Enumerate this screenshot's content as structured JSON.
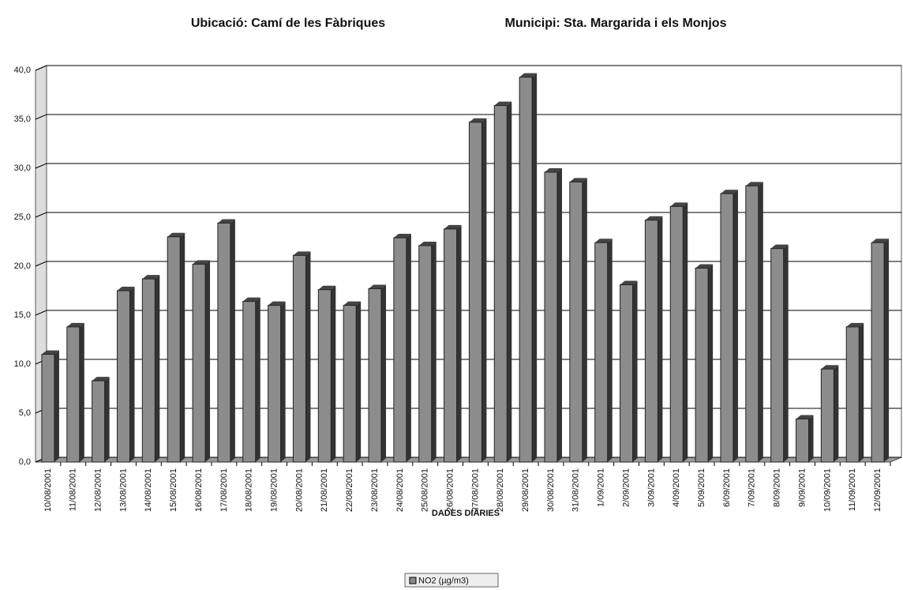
{
  "chart_data": {
    "type": "bar",
    "title": "Ubicació: Camí de les Fàbriques",
    "subtitle": "Municipi: Sta. Margarida i els Monjos",
    "x_label": "DADES DIÀRIES",
    "categories": [
      "10/08/2001",
      "11/08/2001",
      "12/08/2001",
      "13/08/2001",
      "14/08/2001",
      "15/08/2001",
      "16/08/2001",
      "17/08/2001",
      "18/08/2001",
      "19/08/2001",
      "20/08/2001",
      "21/08/2001",
      "22/08/2001",
      "23/08/2001",
      "24/08/2001",
      "25/08/2001",
      "26/08/2001",
      "27/08/2001",
      "28/08/2001",
      "29/08/2001",
      "30/08/2001",
      "31/08/2001",
      "1/09/2001",
      "2/09/2001",
      "3/09/2001",
      "4/09/2001",
      "5/09/2001",
      "6/09/2001",
      "7/09/2001",
      "8/09/2001",
      "9/09/2001",
      "10/09/2001",
      "11/09/2001",
      "12/09/2001"
    ],
    "series": [
      {
        "name": "NO2 (µg/m3)",
        "color": "#8c8c8c",
        "values": [
          11.0,
          13.8,
          8.3,
          17.5,
          18.7,
          23.0,
          20.2,
          24.4,
          16.4,
          16.0,
          21.1,
          17.6,
          16.0,
          17.7,
          22.9,
          22.1,
          23.8,
          34.7,
          36.4,
          39.3,
          29.6,
          28.6,
          22.4,
          18.1,
          24.7,
          26.1,
          19.8,
          27.4,
          28.2,
          21.8,
          4.4,
          9.5,
          13.8,
          22.4
        ]
      }
    ],
    "ylim": [
      0,
      40
    ],
    "yticks": [
      {
        "value": 0,
        "label": "0,0"
      },
      {
        "value": 5,
        "label": "5,0"
      },
      {
        "value": 10,
        "label": "10,0"
      },
      {
        "value": 15,
        "label": "15,0"
      },
      {
        "value": 20,
        "label": "20,0"
      },
      {
        "value": 25,
        "label": "25,0"
      },
      {
        "value": 30,
        "label": "30,0"
      },
      {
        "value": 35,
        "label": "35,0"
      },
      {
        "value": 40,
        "label": "40,0"
      }
    ],
    "grid": true
  }
}
